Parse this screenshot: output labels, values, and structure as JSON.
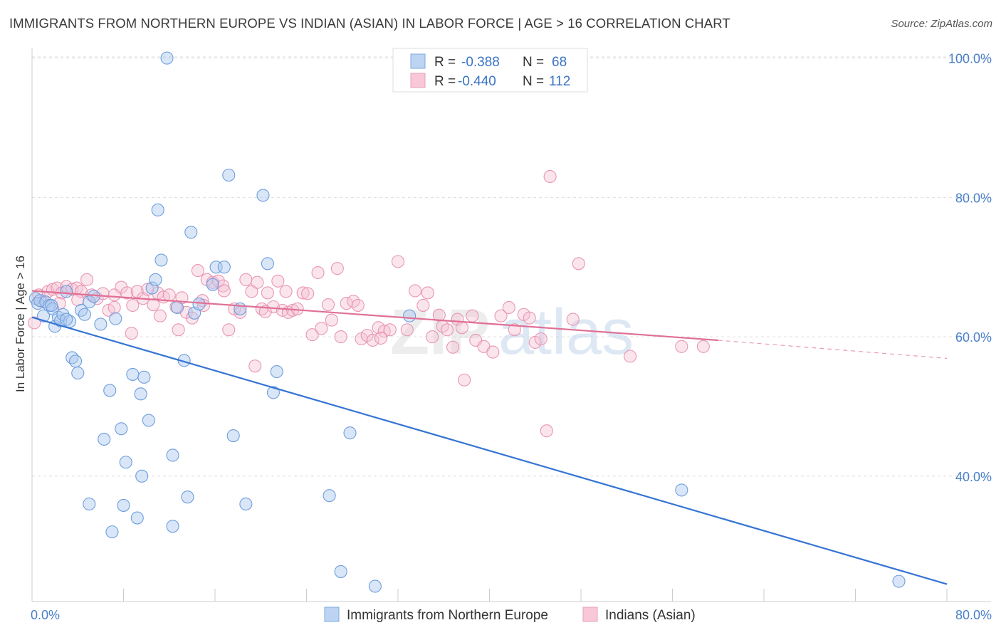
{
  "title": "IMMIGRANTS FROM NORTHERN EUROPE VS INDIAN (ASIAN) IN LABOR FORCE | AGE > 16 CORRELATION CHART",
  "source": "Source: ZipAtlas.com",
  "watermark": {
    "zip": "ZIP",
    "atlas": "atlas"
  },
  "legend": {
    "r_label": "R =",
    "n_label": "N =",
    "entries": [
      {
        "r": "-0.388",
        "n": "68"
      },
      {
        "r": "-0.440",
        "n": "112"
      }
    ]
  },
  "chart_data": {
    "type": "scatter",
    "xlabel": "",
    "ylabel": "In Labor Force | Age > 16",
    "xlim": [
      0,
      80
    ],
    "ylim": [
      22,
      102
    ],
    "x_tick_labels": [
      "0.0%",
      "80.0%"
    ],
    "y_ticks": [
      40,
      60,
      80,
      100
    ],
    "y_tick_labels": [
      "40.0%",
      "60.0%",
      "80.0%",
      "100.0%"
    ],
    "grid": true,
    "colors": {
      "series1": "#8ab4e8",
      "series1_line": "#3474d4",
      "series2": "#f2a8c0",
      "series2_line": "#e07095"
    },
    "series": [
      {
        "name": "Immigrants from Northern Europe",
        "points": [
          [
            0.3,
            65.5
          ],
          [
            0.5,
            64.8
          ],
          [
            0.7,
            65.2
          ],
          [
            1.0,
            63.0
          ],
          [
            1.2,
            65.0
          ],
          [
            1.5,
            64.5
          ],
          [
            1.8,
            64.0
          ],
          [
            2.0,
            61.5
          ],
          [
            2.3,
            62.8
          ],
          [
            2.5,
            62.3
          ],
          [
            2.7,
            63.2
          ],
          [
            3.0,
            66.5
          ],
          [
            3.3,
            62.2
          ],
          [
            3.5,
            57.0
          ],
          [
            3.8,
            56.5
          ],
          [
            4.0,
            54.8
          ],
          [
            4.3,
            63.8
          ],
          [
            4.6,
            63.2
          ],
          [
            5.0,
            65.0
          ],
          [
            5.4,
            65.8
          ],
          [
            6.0,
            61.8
          ],
          [
            6.8,
            52.3
          ],
          [
            7.3,
            62.6
          ],
          [
            7.8,
            46.8
          ],
          [
            8.2,
            42.0
          ],
          [
            8.8,
            54.6
          ],
          [
            9.5,
            51.8
          ],
          [
            9.8,
            54.2
          ],
          [
            10.2,
            48.0
          ],
          [
            10.5,
            67.0
          ],
          [
            10.8,
            68.2
          ],
          [
            11.0,
            78.2
          ],
          [
            11.3,
            71.0
          ],
          [
            11.8,
            100.0
          ],
          [
            12.3,
            43.0
          ],
          [
            12.7,
            64.2
          ],
          [
            13.3,
            56.6
          ],
          [
            13.6,
            37.0
          ],
          [
            13.9,
            75.0
          ],
          [
            14.2,
            63.4
          ],
          [
            14.6,
            64.7
          ],
          [
            15.8,
            67.5
          ],
          [
            16.1,
            70.0
          ],
          [
            16.8,
            70.0
          ],
          [
            17.2,
            83.2
          ],
          [
            17.6,
            45.8
          ],
          [
            18.2,
            64.0
          ],
          [
            18.7,
            36.0
          ],
          [
            20.2,
            80.3
          ],
          [
            20.6,
            70.5
          ],
          [
            21.1,
            52.0
          ],
          [
            21.4,
            55.0
          ],
          [
            26.0,
            37.2
          ],
          [
            27.0,
            26.3
          ],
          [
            27.8,
            46.2
          ],
          [
            30.0,
            24.2
          ],
          [
            33.0,
            63.0
          ],
          [
            56.8,
            38.0
          ],
          [
            75.8,
            24.9
          ],
          [
            1.7,
            64.5
          ],
          [
            5.0,
            36.0
          ],
          [
            6.3,
            45.3
          ],
          [
            7.0,
            32.0
          ],
          [
            9.2,
            34.0
          ],
          [
            9.6,
            40.0
          ],
          [
            12.3,
            32.8
          ],
          [
            8.0,
            35.8
          ],
          [
            3.0,
            62.5
          ]
        ]
      },
      {
        "name": "Indians (Asian)",
        "points": [
          [
            0.2,
            62.0
          ],
          [
            0.6,
            66.0
          ],
          [
            1.0,
            65.0
          ],
          [
            1.4,
            66.5
          ],
          [
            1.8,
            66.8
          ],
          [
            2.2,
            67.0
          ],
          [
            2.6,
            66.3
          ],
          [
            3.0,
            67.2
          ],
          [
            3.5,
            66.8
          ],
          [
            3.9,
            67.0
          ],
          [
            4.3,
            66.5
          ],
          [
            4.8,
            68.2
          ],
          [
            5.2,
            66.0
          ],
          [
            5.7,
            65.5
          ],
          [
            6.2,
            66.2
          ],
          [
            6.7,
            63.8
          ],
          [
            7.2,
            66.0
          ],
          [
            7.8,
            67.1
          ],
          [
            8.3,
            66.3
          ],
          [
            8.8,
            64.5
          ],
          [
            9.2,
            66.5
          ],
          [
            9.7,
            65.5
          ],
          [
            10.1,
            66.8
          ],
          [
            10.6,
            64.6
          ],
          [
            11.0,
            66.3
          ],
          [
            11.5,
            65.7
          ],
          [
            12.0,
            66.0
          ],
          [
            12.6,
            64.3
          ],
          [
            13.1,
            65.6
          ],
          [
            13.5,
            63.5
          ],
          [
            14.0,
            62.7
          ],
          [
            14.5,
            69.5
          ],
          [
            14.9,
            65.2
          ],
          [
            15.3,
            68.2
          ],
          [
            15.8,
            67.8
          ],
          [
            16.3,
            68.0
          ],
          [
            16.7,
            67.3
          ],
          [
            17.2,
            61.0
          ],
          [
            17.7,
            64.0
          ],
          [
            18.2,
            63.5
          ],
          [
            18.7,
            68.2
          ],
          [
            19.2,
            66.5
          ],
          [
            19.7,
            67.8
          ],
          [
            20.1,
            64.0
          ],
          [
            20.6,
            66.3
          ],
          [
            21.1,
            64.3
          ],
          [
            21.5,
            68.0
          ],
          [
            21.9,
            63.8
          ],
          [
            22.4,
            63.5
          ],
          [
            22.8,
            63.8
          ],
          [
            23.2,
            64.0
          ],
          [
            23.7,
            66.3
          ],
          [
            24.1,
            66.2
          ],
          [
            24.5,
            60.3
          ],
          [
            25.0,
            69.2
          ],
          [
            25.3,
            61.2
          ],
          [
            25.9,
            64.6
          ],
          [
            26.2,
            62.4
          ],
          [
            26.7,
            69.8
          ],
          [
            27.0,
            60.0
          ],
          [
            27.5,
            64.8
          ],
          [
            28.1,
            65.1
          ],
          [
            28.5,
            64.5
          ],
          [
            28.8,
            59.7
          ],
          [
            29.3,
            60.2
          ],
          [
            29.8,
            59.5
          ],
          [
            30.3,
            61.3
          ],
          [
            30.8,
            60.8
          ],
          [
            31.3,
            61.0
          ],
          [
            32.0,
            70.8
          ],
          [
            32.8,
            61.0
          ],
          [
            33.5,
            66.6
          ],
          [
            34.2,
            64.5
          ],
          [
            34.6,
            66.3
          ],
          [
            35.0,
            60.0
          ],
          [
            35.6,
            63.1
          ],
          [
            35.9,
            61.5
          ],
          [
            36.3,
            61.0
          ],
          [
            37.2,
            62.5
          ],
          [
            37.6,
            61.3
          ],
          [
            38.5,
            63.0
          ],
          [
            38.8,
            59.5
          ],
          [
            39.5,
            58.6
          ],
          [
            40.3,
            57.8
          ],
          [
            41.0,
            63.0
          ],
          [
            41.7,
            64.2
          ],
          [
            42.2,
            61.0
          ],
          [
            43.0,
            63.2
          ],
          [
            43.5,
            62.7
          ],
          [
            44.0,
            59.2
          ],
          [
            44.5,
            59.7
          ],
          [
            45.3,
            83.0
          ],
          [
            47.3,
            62.5
          ],
          [
            47.8,
            70.5
          ],
          [
            52.3,
            57.2
          ],
          [
            56.8,
            58.6
          ],
          [
            58.7,
            58.6
          ],
          [
            45.0,
            46.5
          ],
          [
            22.2,
            66.5
          ],
          [
            19.5,
            55.8
          ],
          [
            11.2,
            63.0
          ],
          [
            16.8,
            66.6
          ],
          [
            37.8,
            53.8
          ],
          [
            30.5,
            59.8
          ],
          [
            15.0,
            64.5
          ],
          [
            7.2,
            64.2
          ],
          [
            8.7,
            60.5
          ],
          [
            12.8,
            61.0
          ],
          [
            20.4,
            63.6
          ],
          [
            36.8,
            58.5
          ],
          [
            2.4,
            64.8
          ],
          [
            4.0,
            65.3
          ]
        ],
        "line_solid_x_range": [
          0,
          60
        ],
        "line_dashed_x_range": [
          60,
          80
        ]
      }
    ],
    "trend_lines": [
      {
        "series": "Immigrants from Northern Europe",
        "x": [
          0,
          80
        ],
        "y": [
          62.8,
          24.5
        ]
      },
      {
        "series": "Indians (Asian)",
        "x": [
          0,
          60,
          80
        ],
        "y": [
          66.6,
          59.5,
          56.9
        ]
      }
    ]
  }
}
